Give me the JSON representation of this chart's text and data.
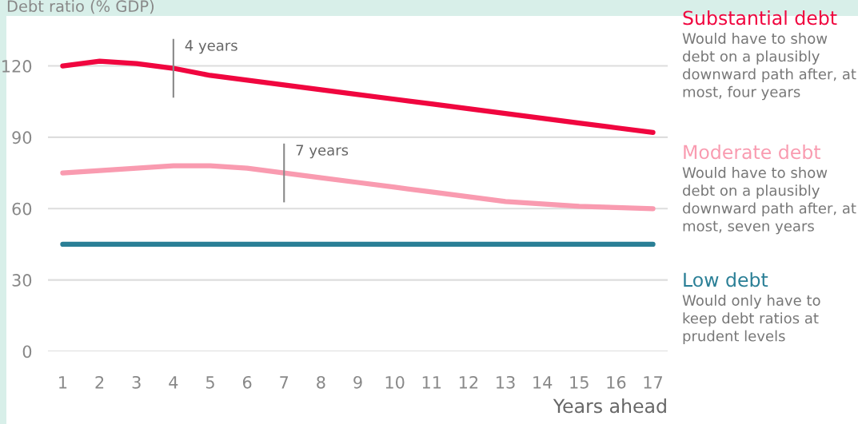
{
  "chart_data": {
    "type": "line",
    "ylabel": "Debt ratio (% GDP)",
    "xlabel": "Years ahead",
    "x": [
      1,
      2,
      3,
      4,
      5,
      6,
      7,
      8,
      9,
      10,
      11,
      12,
      13,
      14,
      15,
      16,
      17
    ],
    "series": [
      {
        "name": "Substantial debt",
        "color": "#f0063f",
        "values": [
          120,
          122,
          121,
          119,
          116,
          114,
          112,
          110,
          108,
          106,
          104,
          102,
          100,
          98,
          96,
          94,
          92
        ]
      },
      {
        "name": "Moderate debt",
        "color": "#f99bb0",
        "values": [
          75,
          76,
          77,
          78,
          78,
          77,
          75,
          73,
          71,
          69,
          67,
          65,
          63,
          62,
          61,
          60.5,
          60
        ]
      },
      {
        "name": "Low debt",
        "color": "#2a7f96",
        "values": [
          45,
          45,
          45,
          45,
          45,
          45,
          45,
          45,
          45,
          45,
          45,
          45,
          45,
          45,
          45,
          45,
          45
        ]
      }
    ],
    "annotations": [
      {
        "text": "4 years",
        "x": 4,
        "y": 119
      },
      {
        "text": "7 years",
        "x": 7,
        "y": 75
      },
      "Would have to show debt on a plausibly downward path after, at most, four years",
      "Would have to show debt on a plausibly downward path after, at most, seven years",
      "Would only have to keep debt ratios at prudent levels"
    ],
    "xlim": [
      0.6,
      17.4
    ],
    "xticks": [
      1,
      2,
      3,
      4,
      5,
      6,
      7,
      8,
      9,
      10,
      11,
      12,
      13,
      14,
      15,
      16,
      17
    ],
    "ylim": [
      0,
      141
    ],
    "yticks": [
      0,
      30,
      60,
      90,
      120
    ],
    "grid": "y",
    "legend": false,
    "marker": "none",
    "line_style": "solid"
  }
}
